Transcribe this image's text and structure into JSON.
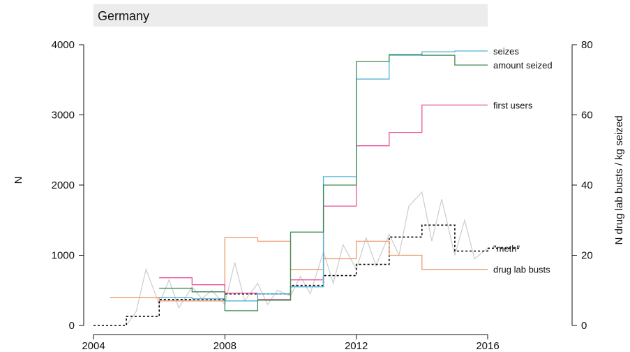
{
  "chart_data": {
    "type": "line",
    "title": "Germany",
    "title_bar_color": "#ececec",
    "xlabel": "",
    "ylabel_left": "N",
    "ylabel_right": "N drug lab busts / kg seized",
    "xlim": [
      2004,
      2016
    ],
    "ylim_left": [
      0,
      4000
    ],
    "ylim_right": [
      0,
      80
    ],
    "xticks": [
      2004,
      2008,
      2012,
      2016
    ],
    "yticks_left": [
      0,
      1000,
      2000,
      3000,
      4000
    ],
    "yticks_right": [
      0,
      20,
      40,
      60,
      80
    ],
    "grid": false,
    "legend": "direct labels at right end of series",
    "series": [
      {
        "name": "seizes",
        "axis": "left",
        "color": "#4fb3d9",
        "style": "step",
        "x": [
          2006,
          2007,
          2008,
          2009,
          2010,
          2011,
          2012,
          2013,
          2014,
          2015
        ],
        "y": [
          400,
          380,
          350,
          450,
          550,
          2120,
          3510,
          3850,
          3900,
          3910
        ]
      },
      {
        "name": "amount seized",
        "axis": "left",
        "color": "#3d8a4f",
        "style": "step",
        "x": [
          2006,
          2007,
          2008,
          2009,
          2010,
          2011,
          2012,
          2013,
          2014,
          2015
        ],
        "y": [
          530,
          480,
          210,
          360,
          1330,
          2000,
          3760,
          3860,
          3850,
          3710
        ]
      },
      {
        "name": "first users",
        "axis": "left",
        "color": "#e8559a",
        "style": "step",
        "x": [
          2006,
          2007,
          2008,
          2009,
          2010,
          2011,
          2012,
          2013,
          2014,
          2015
        ],
        "y": [
          680,
          580,
          460,
          370,
          650,
          1700,
          2560,
          2750,
          3140,
          3140
        ]
      },
      {
        "name": "drug lab busts",
        "axis": "right",
        "color": "#f0966a",
        "style": "step",
        "x": [
          2004.5,
          2006,
          2008,
          2009,
          2010,
          2011,
          2012,
          2013,
          2014,
          2015
        ],
        "y": [
          8,
          7,
          25,
          24,
          16,
          19,
          24,
          20,
          16,
          16
        ]
      },
      {
        "name": "\"meth\"",
        "axis": "left",
        "color": "#000000",
        "style": "dotted-step",
        "x": [
          2004,
          2005,
          2006,
          2008,
          2010,
          2011,
          2012,
          2013,
          2014,
          2015,
          2016
        ],
        "y": [
          0,
          130,
          370,
          450,
          570,
          710,
          870,
          1260,
          1430,
          1060,
          1100
        ]
      },
      {
        "name": "",
        "axis": "left",
        "color": "#cccccc",
        "style": "raw",
        "x": [
          2005.0,
          2005.3,
          2005.6,
          2006.0,
          2006.3,
          2006.6,
          2007.0,
          2007.3,
          2007.6,
          2008.0,
          2008.3,
          2008.6,
          2009.0,
          2009.3,
          2009.6,
          2010.0,
          2010.3,
          2010.6,
          2011.0,
          2011.3,
          2011.6,
          2012.0,
          2012.3,
          2012.6,
          2013.0,
          2013.3,
          2013.6,
          2014.0,
          2014.3,
          2014.6,
          2015.0,
          2015.3,
          2015.6,
          2016.0
        ],
        "y": [
          0,
          200,
          800,
          300,
          650,
          250,
          550,
          380,
          500,
          300,
          900,
          350,
          600,
          300,
          500,
          420,
          700,
          450,
          1050,
          600,
          1150,
          800,
          1250,
          850,
          1300,
          1000,
          1700,
          1900,
          1200,
          1800,
          1000,
          1500,
          950,
          1100
        ]
      }
    ]
  }
}
